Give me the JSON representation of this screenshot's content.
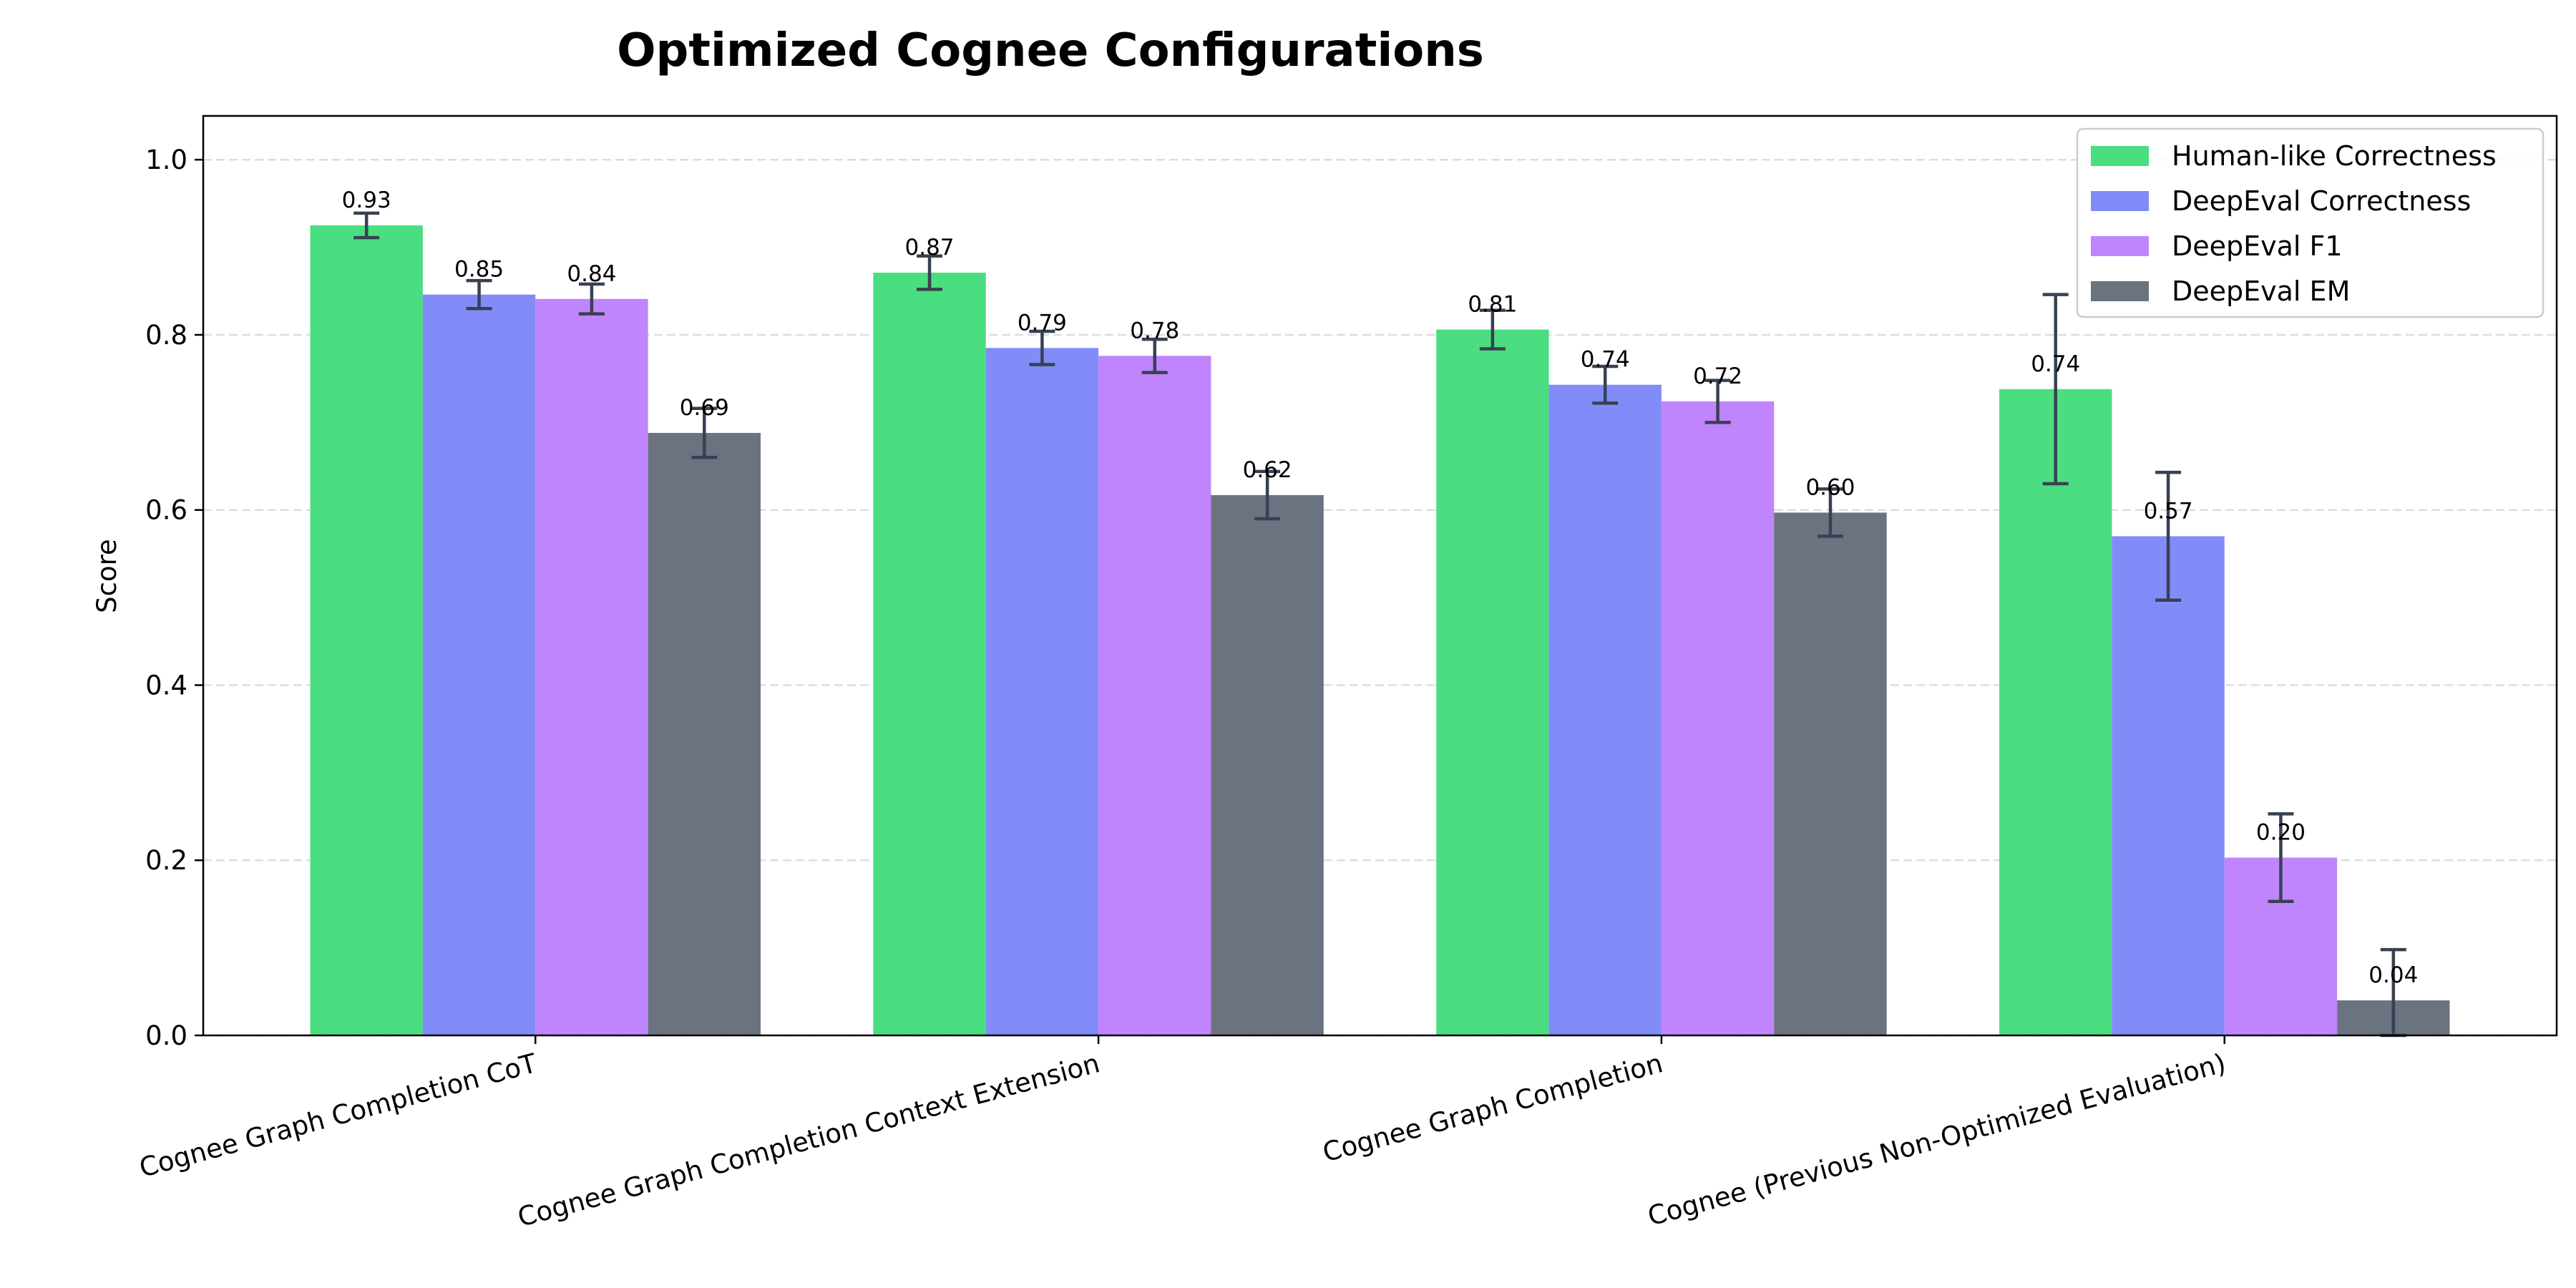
{
  "chart_data": {
    "type": "bar",
    "title": "Optimized Cognee Configurations",
    "xlabel": "",
    "ylabel": "Score",
    "ylim": [
      0,
      1.05
    ],
    "yticks": [
      0.0,
      0.2,
      0.4,
      0.6,
      0.8,
      1.0
    ],
    "ytick_labels": [
      "0.0",
      "0.2",
      "0.4",
      "0.6",
      "0.8",
      "1.0"
    ],
    "grid": "y, dashed",
    "legend_position": "top-right",
    "categories": [
      "Cognee Graph Completion CoT",
      "Cognee Graph Completion Context Extension",
      "Cognee Graph Completion",
      "Cognee (Previous Non-Optimized Evaluation)"
    ],
    "series": [
      {
        "name": "Human-like Correctness",
        "color": "#4ade80",
        "values": [
          0.925,
          0.871,
          0.806,
          0.738
        ],
        "labels": [
          "0.93",
          "0.87",
          "0.81",
          "0.74"
        ],
        "errors": [
          0.014,
          0.019,
          0.022,
          0.108
        ]
      },
      {
        "name": "DeepEval Correctness",
        "color": "#818cf8",
        "values": [
          0.846,
          0.785,
          0.743,
          0.57
        ],
        "labels": [
          "0.85",
          "0.79",
          "0.74",
          "0.57"
        ],
        "errors": [
          0.016,
          0.019,
          0.021,
          0.073
        ]
      },
      {
        "name": "DeepEval F1",
        "color": "#c084fc",
        "values": [
          0.841,
          0.776,
          0.724,
          0.203
        ],
        "labels": [
          "0.84",
          "0.78",
          "0.72",
          "0.20"
        ],
        "errors": [
          0.017,
          0.019,
          0.024,
          0.05
        ]
      },
      {
        "name": "DeepEval EM",
        "color": "#6b7280",
        "values": [
          0.688,
          0.617,
          0.597,
          0.04
        ],
        "labels": [
          "0.69",
          "0.62",
          "0.60",
          "0.04"
        ],
        "errors": [
          0.028,
          0.027,
          0.027,
          0.058
        ]
      }
    ],
    "error_bar_color": "#374151"
  }
}
